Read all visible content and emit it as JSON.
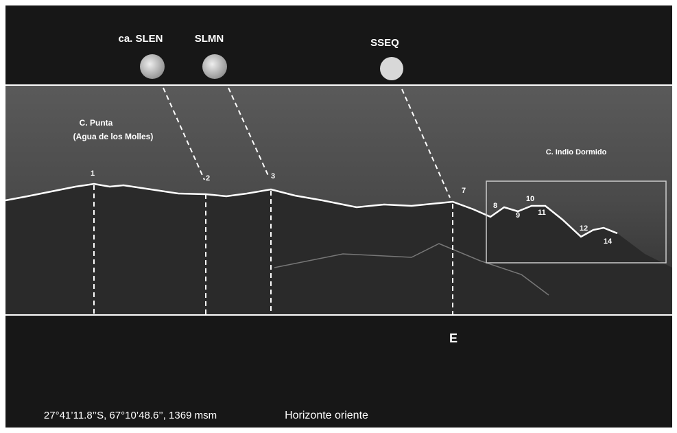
{
  "moons": [
    {
      "label": "ca. SLEN"
    },
    {
      "label": "SLMN"
    },
    {
      "label": "SSEQ"
    }
  ],
  "landmarks": [
    {
      "label": "C. Punta"
    },
    {
      "label": "(Agua de los Molles)"
    },
    {
      "label": "C. Indio Dormido"
    }
  ],
  "points": [
    "1",
    "2",
    "3",
    "7",
    "8",
    "9",
    "10",
    "11",
    "12",
    "14"
  ],
  "direction": "E",
  "footer": {
    "coordinates": "27°41’11.8’’S, 67°10’48.6’’, 1369 msm",
    "caption": "Horizonte oriente"
  }
}
